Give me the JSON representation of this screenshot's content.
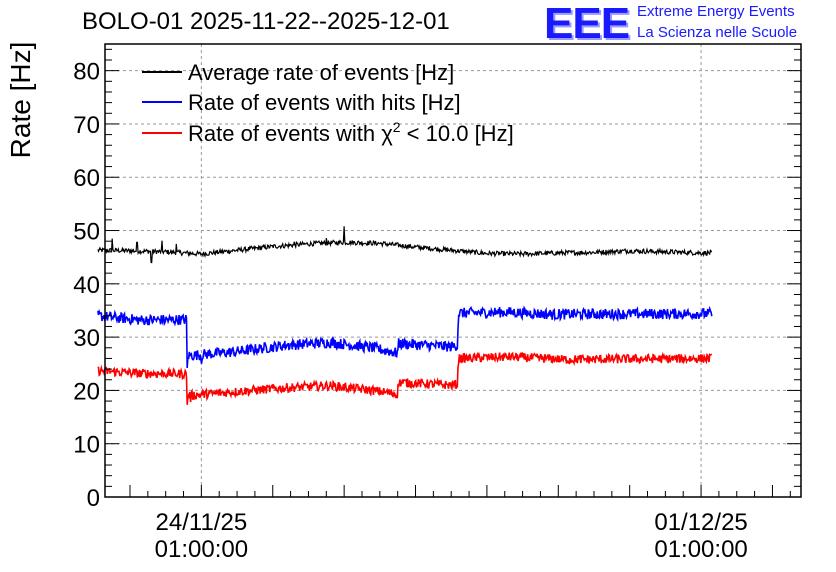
{
  "title": "BOLO-01 2025-11-22--2025-12-01",
  "logo": {
    "text": "EEE",
    "line1": "Extreme Energy Events",
    "line2": "La Scienza nelle Scuole",
    "color": "#1a1aff"
  },
  "chart_data": {
    "type": "line",
    "title": "BOLO-01 2025-11-22--2025-12-01",
    "ylabel": "Rate [Hz]",
    "xlabel": "",
    "ylim": [
      0,
      85
    ],
    "yticks": [
      0,
      10,
      20,
      30,
      40,
      50,
      60,
      70,
      80
    ],
    "xlim": [
      -1.35,
      8.4
    ],
    "xticks": [
      {
        "x": 0,
        "line1": "24/11/25",
        "line2": "01:00:00"
      },
      {
        "x": 7,
        "line1": "01/12/25",
        "line2": "01:00:00"
      }
    ],
    "grid": true,
    "legend_position": "top-left",
    "x_unit": "days since 24/11/25 01:00:00",
    "series": [
      {
        "name": "Average rate of events [Hz]",
        "color": "#000000",
        "noise": 0.45,
        "x": [
          -1.45,
          -1.0,
          -0.5,
          0.0,
          0.5,
          1.0,
          1.5,
          2.0,
          2.5,
          3.0,
          3.5,
          4.0,
          4.5,
          5.0,
          5.5,
          6.0,
          6.5,
          7.0,
          7.15
        ],
        "y": [
          46.3,
          46.2,
          46.0,
          45.6,
          46.3,
          47.0,
          47.5,
          47.8,
          47.6,
          46.9,
          46.3,
          45.7,
          45.6,
          45.8,
          45.9,
          46.2,
          46.0,
          45.8,
          45.8
        ],
        "spikes": [
          [
            -1.25,
            48.5
          ],
          [
            -0.9,
            47.8
          ],
          [
            -0.55,
            48.1
          ],
          [
            -0.35,
            47.5
          ],
          [
            -0.7,
            44.0
          ],
          [
            1.75,
            48.6
          ],
          [
            2.0,
            50.8
          ],
          [
            1.3,
            47.9
          ]
        ]
      },
      {
        "name": "Rate of events with hits [Hz]",
        "color": "#0000ff",
        "noise": 1.0,
        "x": [
          -1.45,
          -0.85,
          -0.2,
          -0.19,
          0.5,
          1.2,
          1.8,
          2.4,
          2.75,
          2.76,
          3.5,
          3.59,
          3.6,
          4.3,
          5.0,
          5.01,
          7.15
        ],
        "y": [
          34.0,
          33.2,
          33.3,
          26.5,
          27.3,
          28.5,
          29.0,
          28.0,
          27.0,
          28.8,
          28.2,
          28.5,
          34.5,
          34.7,
          34.2,
          34.3,
          34.4
        ],
        "spikes": [
          [
            -0.2,
            24.2
          ],
          [
            0.0,
            25.0
          ]
        ]
      },
      {
        "name": "Rate of events with χ² < 10.0 [Hz]",
        "legend_main": "Rate of events with χ",
        "legend_sup": "2",
        "legend_rest": " < 10.0 [Hz]",
        "color": "#ff0000",
        "noise": 0.85,
        "x": [
          -1.45,
          -0.85,
          -0.2,
          -0.19,
          0.5,
          1.2,
          1.8,
          2.4,
          2.75,
          2.76,
          3.5,
          3.59,
          3.6,
          4.3,
          5.0,
          5.01,
          7.15
        ],
        "y": [
          23.7,
          23.2,
          23.1,
          19.0,
          19.8,
          20.5,
          20.9,
          20.0,
          19.3,
          21.5,
          21.0,
          21.2,
          26.0,
          26.3,
          25.9,
          25.8,
          26.0
        ],
        "spikes": [
          [
            -0.2,
            17.3
          ],
          [
            -0.15,
            17.8
          ]
        ]
      }
    ]
  }
}
